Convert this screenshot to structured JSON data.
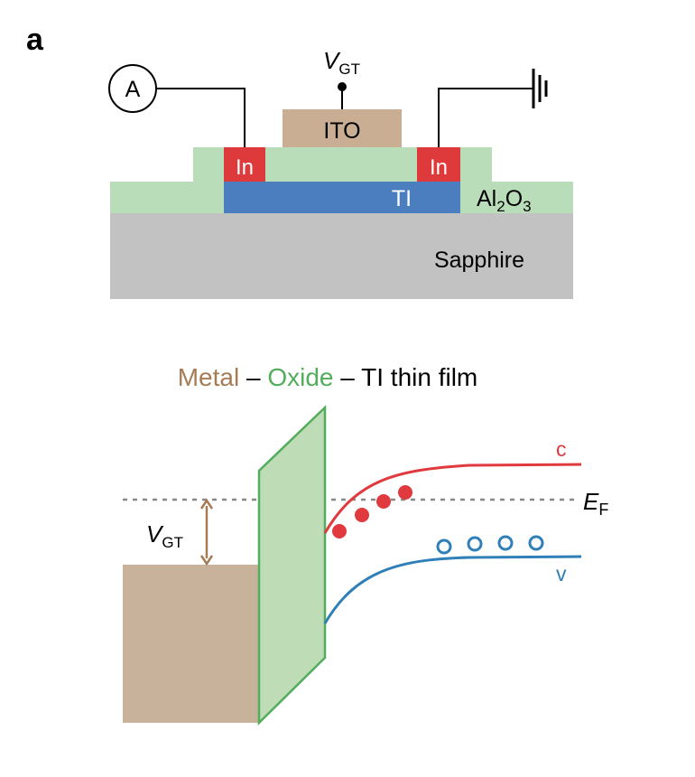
{
  "panel_label": "a",
  "device": {
    "ammeter_symbol": "A",
    "gate_voltage_main": "V",
    "gate_voltage_sub": "GT",
    "gate_layer": "ITO",
    "contact_left": "In",
    "contact_right": "In",
    "channel_layer": "TI",
    "dielectric": {
      "main": "Al",
      "sub1": "2",
      "mid": "O",
      "sub2": "3"
    },
    "substrate": "Sapphire",
    "colors": {
      "ito": "#c9ae94",
      "indium": "#df3a3b",
      "ti": "#4b7ebe",
      "alumina": "#b9ddb8",
      "sapphire": "#c2c2c2"
    }
  },
  "band_diagram": {
    "title": {
      "metal": "Metal",
      "dash1": " – ",
      "oxide": "Oxide",
      "rest": " – TI thin film"
    },
    "fermi_main": "E",
    "fermi_sub": "F",
    "bias_main": "V",
    "bias_sub": "GT",
    "conduction_label": "c",
    "valence_label": "v",
    "colors": {
      "metal": "#c9b29c",
      "oxide_fill": "#bedcb6",
      "oxide_stroke": "#52ad5c",
      "conduction": "#e03a3e",
      "valence": "#2f7fb8",
      "fermi": "#888888",
      "arrow": "#a57c56"
    }
  }
}
